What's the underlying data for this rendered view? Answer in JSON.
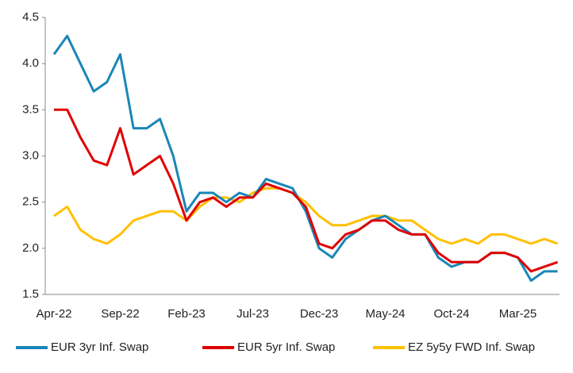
{
  "chart_data": {
    "type": "line",
    "categories": [
      "Apr-22",
      null,
      null,
      null,
      null,
      "Sep-22",
      null,
      null,
      null,
      null,
      "Feb-23",
      null,
      null,
      null,
      null,
      "Jul-23",
      null,
      null,
      null,
      null,
      "Dec-23",
      null,
      null,
      null,
      null,
      "May-24",
      null,
      null,
      null,
      null,
      "Oct-24",
      null,
      null,
      null,
      null,
      "Mar-25",
      null,
      null,
      null
    ],
    "series": [
      {
        "name": "EUR 3yr Inf. Swap",
        "color": "#1a86b8",
        "values": [
          4.1,
          4.3,
          4.0,
          3.7,
          3.8,
          4.1,
          3.3,
          3.3,
          3.4,
          3.0,
          2.4,
          2.6,
          2.6,
          2.5,
          2.6,
          2.55,
          2.75,
          2.7,
          2.65,
          2.4,
          2.0,
          1.9,
          2.1,
          2.2,
          2.3,
          2.35,
          2.25,
          2.15,
          2.15,
          1.9,
          1.8,
          1.85,
          1.85,
          1.95,
          1.95,
          1.9,
          1.65,
          1.75,
          1.75
        ]
      },
      {
        "name": "EUR 5yr Inf. Swap",
        "color": "#e00000",
        "values": [
          3.5,
          3.5,
          3.2,
          2.95,
          2.9,
          3.3,
          2.8,
          2.9,
          3.0,
          2.7,
          2.3,
          2.5,
          2.55,
          2.45,
          2.55,
          2.55,
          2.7,
          2.65,
          2.6,
          2.45,
          2.05,
          2.0,
          2.15,
          2.2,
          2.3,
          2.3,
          2.2,
          2.15,
          2.15,
          1.95,
          1.85,
          1.85,
          1.85,
          1.95,
          1.95,
          1.9,
          1.75,
          1.8,
          1.85
        ]
      },
      {
        "name": "EZ 5y5y FWD Inf. Swap",
        "color": "#ffc000",
        "values": [
          2.35,
          2.45,
          2.2,
          2.1,
          2.05,
          2.15,
          2.3,
          2.35,
          2.4,
          2.4,
          2.3,
          2.45,
          2.55,
          2.55,
          2.5,
          2.6,
          2.65,
          2.65,
          2.6,
          2.5,
          2.35,
          2.25,
          2.25,
          2.3,
          2.35,
          2.35,
          2.3,
          2.3,
          2.2,
          2.1,
          2.05,
          2.1,
          2.05,
          2.15,
          2.15,
          2.1,
          2.05,
          2.1,
          2.05
        ]
      }
    ],
    "ylim": [
      1.5,
      4.5
    ],
    "yticks": [
      {
        "value": 1.5,
        "label": "1.5"
      },
      {
        "value": 2,
        "label": "2.0"
      },
      {
        "value": 2.5,
        "label": "2.5"
      },
      {
        "value": 3,
        "label": "3.0"
      },
      {
        "value": 3.5,
        "label": "3.5"
      },
      {
        "value": 4,
        "label": "4.0"
      },
      {
        "value": 4.5,
        "label": "4.5"
      }
    ],
    "grid": false,
    "legend": "bottom"
  }
}
